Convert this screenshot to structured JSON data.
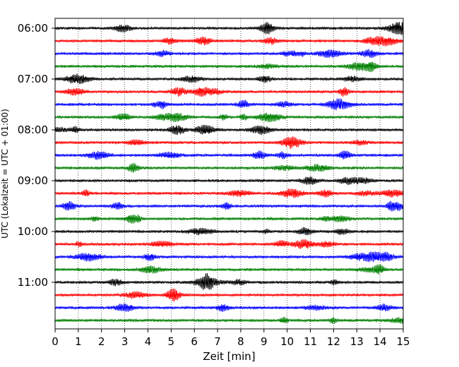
{
  "chart_data": {
    "type": "line",
    "subtype": "helicorder",
    "xlabel": "Zeit  [min]",
    "ylabel": "UTC (Lokalzeit = UTC + 01:00)",
    "xlim": [
      0,
      15
    ],
    "x_ticks": [
      0,
      1,
      2,
      3,
      4,
      5,
      6,
      7,
      8,
      9,
      10,
      11,
      12,
      13,
      14,
      15
    ],
    "y_tick_labels": [
      "06:00",
      "07:00",
      "08:00",
      "09:00",
      "10:00",
      "11:00"
    ],
    "trace_minutes": 15,
    "trace_start": "06:00",
    "trace_count": 24,
    "trace_colors": [
      "#000000",
      "#ff0000",
      "#0000ff",
      "#008000"
    ],
    "grid": {
      "x": true,
      "y": false,
      "style": "dotted"
    },
    "legend": "none"
  }
}
